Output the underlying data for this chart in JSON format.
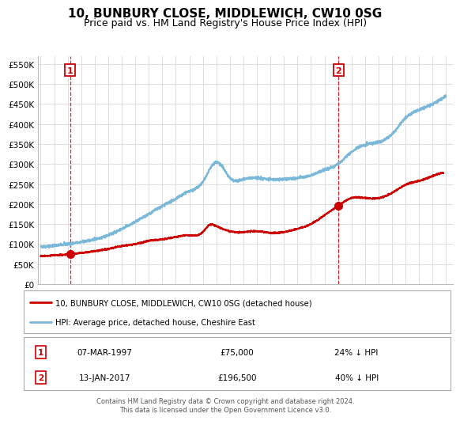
{
  "title": "10, BUNBURY CLOSE, MIDDLEWICH, CW10 0SG",
  "subtitle": "Price paid vs. HM Land Registry's House Price Index (HPI)",
  "title_fontsize": 11,
  "subtitle_fontsize": 9,
  "xlim": [
    1994.8,
    2025.5
  ],
  "ylim": [
    0,
    570000
  ],
  "yticks": [
    0,
    50000,
    100000,
    150000,
    200000,
    250000,
    300000,
    350000,
    400000,
    450000,
    500000,
    550000
  ],
  "ytick_labels": [
    "£0",
    "£50K",
    "£100K",
    "£150K",
    "£200K",
    "£250K",
    "£300K",
    "£350K",
    "£400K",
    "£450K",
    "£500K",
    "£550K"
  ],
  "xticks": [
    1995,
    1996,
    1997,
    1998,
    1999,
    2000,
    2001,
    2002,
    2003,
    2004,
    2005,
    2006,
    2007,
    2008,
    2009,
    2010,
    2011,
    2012,
    2013,
    2014,
    2015,
    2016,
    2017,
    2018,
    2019,
    2020,
    2021,
    2022,
    2023,
    2024,
    2025
  ],
  "hpi_color": "#7ab8d9",
  "sale_color": "#cc0000",
  "marker_color": "#cc0000",
  "annotation_box_color": "#cc0000",
  "vline_color": "#cc0000",
  "grid_color": "#dddddd",
  "background_color": "#ffffff",
  "sale1_date": 1997.18,
  "sale1_price": 75000,
  "sale1_label": "1",
  "sale1_text": "07-MAR-1997",
  "sale1_price_text": "£75,000",
  "sale1_hpi_text": "24% ↓ HPI",
  "sale2_date": 2017.04,
  "sale2_price": 196500,
  "sale2_label": "2",
  "sale2_text": "13-JAN-2017",
  "sale2_price_text": "£196,500",
  "sale2_hpi_text": "40% ↓ HPI",
  "legend1_text": "10, BUNBURY CLOSE, MIDDLEWICH, CW10 0SG (detached house)",
  "legend2_text": "HPI: Average price, detached house, Cheshire East",
  "footnote1": "Contains HM Land Registry data © Crown copyright and database right 2024.",
  "footnote2": "This data is licensed under the Open Government Licence v3.0.",
  "sale_marker_size": 7
}
